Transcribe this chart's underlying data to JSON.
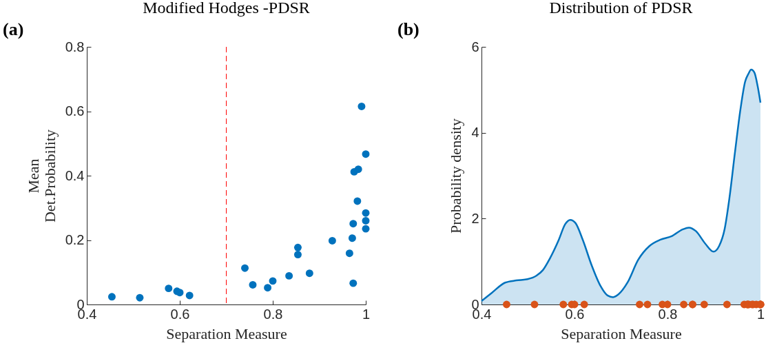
{
  "chart_data": [
    {
      "type": "scatter",
      "title": "Modified Hodges -PDSR",
      "xlabel": "Separation Measure",
      "ylabel": "Mean\nDet.Probability",
      "annotations": [
        "(a)"
      ],
      "color": "#0072bd",
      "marker": "circle",
      "grid": false,
      "x": [
        0.454,
        0.514,
        0.576,
        0.594,
        0.6,
        0.621,
        0.74,
        0.757,
        0.789,
        0.8,
        0.835,
        0.854,
        0.854,
        0.879,
        0.928,
        0.965,
        0.971,
        0.973,
        0.973,
        0.975,
        0.984,
        0.982,
        0.991,
        1.0,
        1.0,
        1.0,
        1.0
      ],
      "values": [
        0.024,
        0.021,
        0.05,
        0.041,
        0.037,
        0.028,
        0.113,
        0.061,
        0.052,
        0.073,
        0.089,
        0.177,
        0.155,
        0.097,
        0.198,
        0.159,
        0.206,
        0.066,
        0.251,
        0.412,
        0.42,
        0.321,
        0.615,
        0.467,
        0.284,
        0.26,
        0.235
      ],
      "xlim": [
        0.4,
        1
      ],
      "xticks": [
        0.4,
        0.6,
        0.8,
        1
      ],
      "ylim": [
        0,
        0.8
      ],
      "yticks": [
        0,
        0.2,
        0.4,
        0.6,
        0.8
      ],
      "ref_lines": [
        {
          "axis": "x",
          "value": 0.7,
          "color": "#ff0000",
          "line_style": "dashed"
        }
      ]
    },
    {
      "type": "area",
      "title": "Distribution of PDSR",
      "xlabel": "Separation Measure",
      "ylabel": "Probability density",
      "annotations": [
        "(b)"
      ],
      "grid": false,
      "xlim": [
        0.4,
        1
      ],
      "xticks": [
        0.4,
        0.6,
        0.8,
        1
      ],
      "ylim": [
        0,
        6
      ],
      "yticks": [
        0,
        2,
        4,
        6
      ],
      "series": [
        {
          "type": "area",
          "color": "#0072bd",
          "x": [
            0.4,
            0.422,
            0.451,
            0.475,
            0.499,
            0.518,
            0.532,
            0.547,
            0.566,
            0.58,
            0.591,
            0.602,
            0.618,
            0.637,
            0.656,
            0.671,
            0.683,
            0.695,
            0.714,
            0.737,
            0.761,
            0.785,
            0.809,
            0.833,
            0.846,
            0.861,
            0.881,
            0.899,
            0.911,
            0.923,
            0.933,
            0.945,
            0.957,
            0.967,
            0.974,
            0.98,
            0.987,
            0.994,
            1.0
          ],
          "values": [
            0.08,
            0.27,
            0.51,
            0.56,
            0.59,
            0.67,
            0.8,
            1.07,
            1.5,
            1.87,
            1.97,
            1.9,
            1.5,
            0.91,
            0.43,
            0.21,
            0.17,
            0.24,
            0.51,
            1.04,
            1.36,
            1.51,
            1.59,
            1.75,
            1.79,
            1.71,
            1.42,
            1.23,
            1.36,
            1.76,
            2.46,
            3.53,
            4.55,
            5.19,
            5.37,
            5.47,
            5.4,
            5.08,
            4.7
          ]
        },
        {
          "type": "scatter",
          "color": "#d95319",
          "marker": "circle",
          "x": [
            0.454,
            0.514,
            0.576,
            0.594,
            0.6,
            0.621,
            0.74,
            0.757,
            0.789,
            0.8,
            0.835,
            0.854,
            0.854,
            0.879,
            0.928,
            0.965,
            0.971,
            0.973,
            0.973,
            0.975,
            0.984,
            0.982,
            0.991,
            1.0,
            1.0,
            1.0,
            1.0
          ],
          "values": [
            0,
            0,
            0,
            0,
            0,
            0,
            0,
            0,
            0,
            0,
            0,
            0,
            0,
            0,
            0,
            0,
            0,
            0,
            0,
            0,
            0,
            0,
            0,
            0,
            0,
            0,
            0
          ]
        }
      ]
    }
  ]
}
